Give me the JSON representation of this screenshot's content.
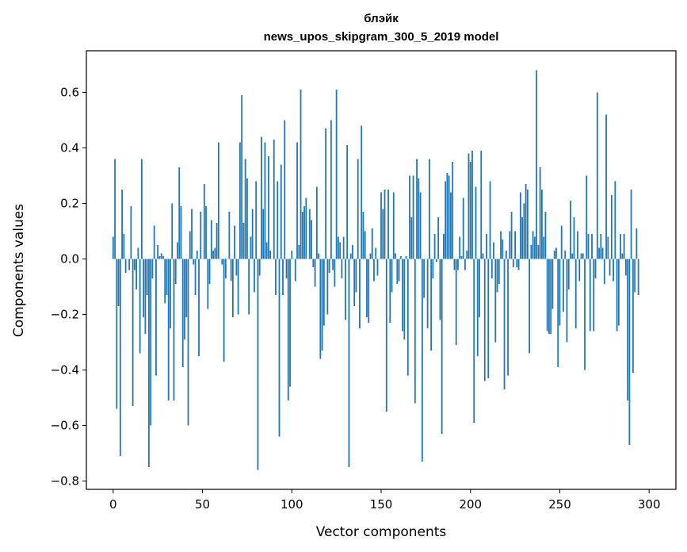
{
  "chart_data": {
    "type": "bar",
    "title_line1": "блэйк",
    "title_line2": "news_upos_skipgram_300_5_2019 model",
    "xlabel": "Vector components",
    "ylabel": "Components values",
    "xlim": [
      -15,
      315
    ],
    "ylim": [
      -0.83,
      0.75
    ],
    "xticks": [
      0,
      50,
      100,
      150,
      200,
      250,
      300
    ],
    "xtick_labels": [
      "0",
      "50",
      "100",
      "150",
      "200",
      "250",
      "300"
    ],
    "yticks": [
      -0.8,
      -0.6,
      -0.4,
      -0.2,
      0.0,
      0.2,
      0.4,
      0.6
    ],
    "ytick_labels": [
      "−0.8",
      "−0.6",
      "−0.4",
      "−0.2",
      "0.0",
      "0.2",
      "0.4",
      "0.6"
    ],
    "color": "#1f77b4",
    "values": [
      0.08,
      0.36,
      -0.54,
      -0.17,
      -0.71,
      0.25,
      0.09,
      -0.05,
      0.0,
      -0.04,
      0.19,
      -0.53,
      -0.04,
      -0.11,
      0.04,
      -0.34,
      0.36,
      -0.21,
      -0.27,
      -0.13,
      -0.75,
      -0.6,
      -0.07,
      0.12,
      -0.42,
      0.05,
      0.01,
      0.02,
      0.01,
      -0.16,
      -0.13,
      -0.51,
      -0.25,
      0.2,
      -0.51,
      -0.09,
      0.06,
      0.33,
      0.19,
      -0.39,
      -0.29,
      -0.21,
      -0.6,
      0.1,
      0.18,
      -0.02,
      -0.13,
      0.03,
      -0.35,
      0.17,
      0.0,
      0.27,
      0.19,
      -0.18,
      -0.09,
      0.14,
      0.03,
      0.04,
      0.13,
      0.42,
      0.0,
      -0.02,
      -0.37,
      -0.07,
      0.0,
      0.17,
      -0.08,
      -0.21,
      0.12,
      -0.06,
      -0.2,
      0.42,
      0.59,
      0.13,
      0.36,
      0.29,
      -0.2,
      0.08,
      0.18,
      -0.12,
      0.28,
      -0.76,
      -0.06,
      0.44,
      0.18,
      0.42,
      0.06,
      0.37,
      0.03,
      0.0,
      0.43,
      -0.13,
      0.28,
      -0.64,
      0.34,
      -0.13,
      0.5,
      -0.07,
      -0.51,
      -0.46,
      0.03,
      0.0,
      -0.08,
      0.42,
      0.05,
      0.61,
      0.17,
      0.19,
      0.22,
      0.0,
      0.18,
      0.14,
      -0.03,
      -0.1,
      0.26,
      0.02,
      -0.36,
      -0.33,
      -0.24,
      0.47,
      -0.2,
      -0.05,
      0.5,
      -0.04,
      -0.1,
      0.61,
      0.08,
      0.06,
      -0.07,
      0.08,
      -0.22,
      0.41,
      -0.75,
      0.02,
      0.05,
      -0.17,
      -0.12,
      0.36,
      -0.25,
      0.48,
      0.17,
      0.1,
      -0.21,
      -0.23,
      0.02,
      0.11,
      -0.08,
      0.04,
      -0.06,
      0.0,
      0.24,
      0.18,
      0.25,
      -0.55,
      0.25,
      -0.23,
      -0.12,
      0.24,
      0.02,
      -0.09,
      -0.08,
      0.01,
      -0.26,
      -0.29,
      0.01,
      -0.42,
      0.3,
      0.15,
      0.3,
      -0.52,
      0.36,
      0.29,
      0.24,
      -0.73,
      -0.14,
      0.0,
      -0.25,
      0.36,
      -0.33,
      -0.07,
      0.09,
      -0.01,
      0.15,
      -0.22,
      -0.63,
      0.09,
      0.28,
      0.31,
      0.3,
      0.24,
      0.35,
      -0.04,
      -0.31,
      -0.04,
      0.08,
      0.01,
      0.22,
      -0.04,
      0.03,
      0.38,
      0.35,
      0.39,
      -0.59,
      0.26,
      -0.35,
      -0.21,
      0.39,
      0.02,
      -0.44,
      0.09,
      -0.43,
      0.28,
      -0.07,
      0.06,
      -0.3,
      -0.12,
      -0.09,
      0.1,
      0.07,
      -0.47,
      0.03,
      -0.42,
      0.1,
      0.17,
      -0.03,
      0.1,
      -0.03,
      -0.04,
      0.24,
      0.15,
      0.2,
      0.27,
      0.25,
      -0.34,
      0.05,
      0.1,
      0.08,
      0.68,
      0.05,
      0.33,
      0.25,
      0.08,
      0.17,
      -0.26,
      -0.27,
      -0.27,
      -0.18,
      0.03,
      0.04,
      -0.39,
      -0.24,
      0.12,
      -0.19,
      0.03,
      -0.3,
      -0.11,
      0.21,
      0.02,
      0.15,
      -0.25,
      0.1,
      -0.08,
      0.02,
      0.02,
      -0.4,
      0.3,
      0.09,
      -0.26,
      0.09,
      -0.26,
      -0.07,
      0.6,
      0.04,
      0.09,
      0.04,
      -0.09,
      0.52,
      0.08,
      -0.06,
      0.23,
      -0.08,
      0.28,
      -0.26,
      -0.24,
      0.09,
      0.02,
      0.09,
      -0.06,
      -0.51,
      -0.67,
      0.25,
      -0.41,
      -0.12,
      0.11,
      -0.13
    ]
  }
}
